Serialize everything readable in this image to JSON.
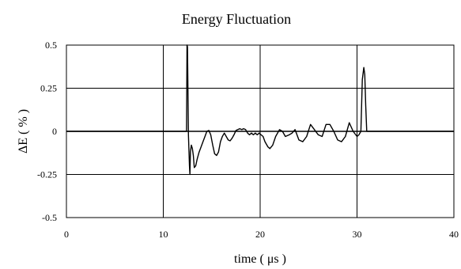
{
  "chart_data": {
    "type": "line",
    "title": "Energy Fluctuation",
    "xlabel": "time ( μs )",
    "ylabel": "ΔE ( % )",
    "xlim": [
      0,
      40
    ],
    "ylim": [
      -0.5,
      0.5
    ],
    "x_ticks": [
      "0",
      "10",
      "20",
      "30",
      "40"
    ],
    "y_ticks": [
      "0.5",
      "0.25",
      "0",
      "-0.25",
      "-0.5"
    ],
    "grid": true,
    "series": [
      {
        "color": "#000000",
        "x": [
          0,
          12.4,
          12.45,
          12.5,
          12.6,
          12.7,
          12.75,
          12.8,
          12.9,
          13.0,
          13.1,
          13.2,
          13.35,
          13.5,
          13.7,
          13.9,
          14.1,
          14.3,
          14.5,
          14.7,
          14.9,
          15.1,
          15.3,
          15.5,
          15.7,
          15.9,
          16.1,
          16.3,
          16.5,
          16.7,
          16.9,
          17.1,
          17.3,
          17.5,
          17.7,
          17.9,
          18.1,
          18.3,
          18.5,
          18.7,
          18.9,
          19.1,
          19.3,
          19.5,
          19.7,
          19.9,
          20.1,
          20.3,
          20.5,
          20.8,
          21.0,
          21.3,
          21.6,
          22.0,
          22.3,
          22.6,
          23.0,
          23.3,
          23.6,
          24.0,
          24.4,
          24.8,
          25.2,
          25.6,
          26.0,
          26.4,
          26.8,
          27.2,
          27.6,
          28.0,
          28.4,
          28.8,
          29.2,
          29.6,
          30.0,
          30.2,
          30.4,
          30.55,
          30.7,
          30.8,
          30.9,
          31.0,
          31.1,
          40
        ],
        "y": [
          0,
          0,
          0.5,
          0.49,
          -0.02,
          -0.2,
          -0.25,
          -0.12,
          -0.08,
          -0.1,
          -0.14,
          -0.21,
          -0.2,
          -0.16,
          -0.12,
          -0.09,
          -0.06,
          -0.03,
          0.0,
          0.005,
          -0.02,
          -0.08,
          -0.13,
          -0.14,
          -0.12,
          -0.06,
          -0.03,
          -0.01,
          -0.03,
          -0.05,
          -0.055,
          -0.04,
          -0.02,
          0.005,
          0.01,
          0.015,
          0.01,
          0.015,
          0.01,
          -0.01,
          -0.02,
          -0.01,
          -0.02,
          -0.01,
          -0.02,
          -0.01,
          -0.02,
          -0.03,
          -0.06,
          -0.09,
          -0.1,
          -0.08,
          -0.03,
          0.01,
          0.0,
          -0.03,
          -0.02,
          -0.01,
          0.01,
          -0.05,
          -0.06,
          -0.03,
          0.04,
          0.01,
          -0.02,
          -0.03,
          0.04,
          0.04,
          0.0,
          -0.05,
          -0.06,
          -0.03,
          0.05,
          0.0,
          -0.03,
          -0.02,
          0.0,
          0.3,
          0.37,
          0.33,
          0.15,
          0.0,
          0.0,
          0
        ]
      }
    ]
  }
}
